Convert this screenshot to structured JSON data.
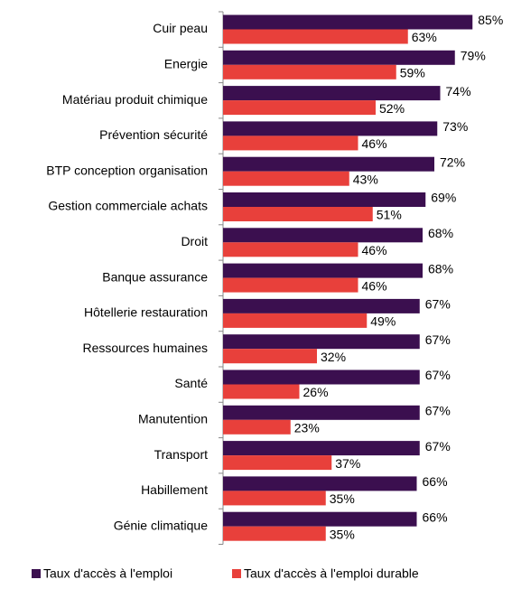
{
  "chart_data": {
    "type": "barh",
    "categories": [
      "Cuir peau",
      "Energie",
      "Matériau produit chimique",
      "Prévention sécurité",
      "BTP conception organisation",
      "Gestion commerciale achats",
      "Droit",
      "Banque assurance",
      "Hôtellerie restauration",
      "Ressources humaines",
      "Santé",
      "Manutention",
      "Transport",
      "Habillement",
      "Génie climatique"
    ],
    "series": [
      {
        "name": "Taux d'accès à l'emploi",
        "color": "#3b0f4f",
        "values": [
          85,
          79,
          74,
          73,
          72,
          69,
          68,
          68,
          67,
          67,
          67,
          67,
          67,
          66,
          66
        ],
        "value_labels": [
          "85%",
          "79%",
          "74%",
          "73%",
          "72%",
          "69%",
          "68%",
          "68%",
          "67%",
          "67%",
          "67%",
          "67%",
          "67%",
          "66%",
          "66%"
        ]
      },
      {
        "name": "Taux d'accès à l'emploi durable",
        "color": "#e8403b",
        "values": [
          63,
          59,
          52,
          46,
          43,
          51,
          46,
          46,
          49,
          32,
          26,
          23,
          37,
          35,
          35
        ],
        "value_labels": [
          "63%",
          "59%",
          "52%",
          "46%",
          "43%",
          "51%",
          "46%",
          "46%",
          "49%",
          "32%",
          "26%",
          "23%",
          "37%",
          "35%",
          "35%"
        ]
      }
    ],
    "legend": "bottom"
  }
}
